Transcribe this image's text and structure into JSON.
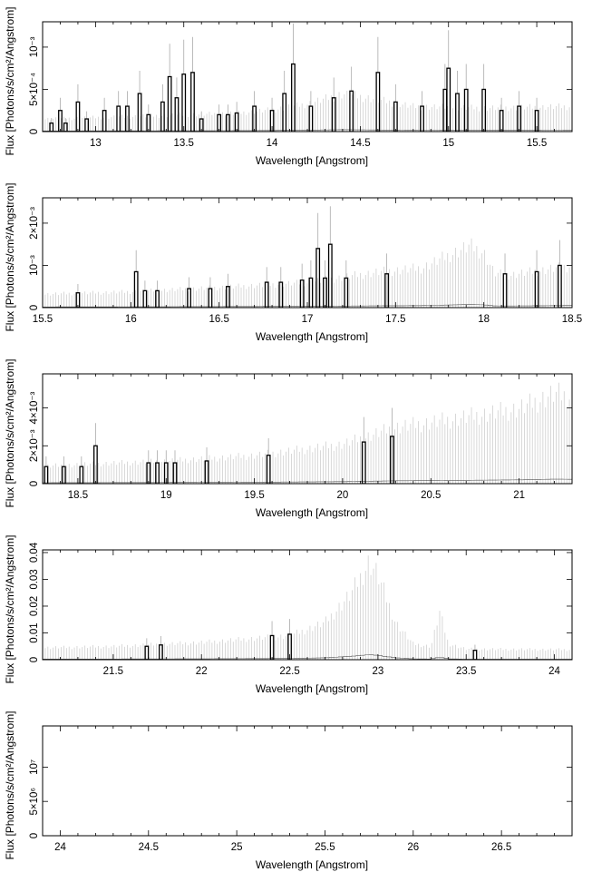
{
  "colors": {
    "frame": "#000000",
    "data": "#000000",
    "errorbar": "#c8c8c8",
    "background": "#ffffff"
  },
  "chart_data": [
    {
      "type": "line",
      "xlabel": "Wavelength [Angstrom]",
      "ylabel": "Flux [Photons/s/cm²/Angstrom]",
      "xlim": [
        12.7,
        15.7
      ],
      "ylim": [
        0,
        0.0013
      ],
      "xticks": [
        13,
        13.5,
        14,
        14.5,
        15,
        15.5
      ],
      "yticks": [
        {
          "v": 0,
          "label": "0"
        },
        {
          "v": 0.0005,
          "label": "5×10⁻⁴"
        },
        {
          "v": 0.001,
          "label": "10⁻³"
        }
      ],
      "continuum": [
        [
          12.7,
          0.00015
        ],
        [
          13.2,
          0.00018
        ],
        [
          13.8,
          0.00022
        ],
        [
          14.0,
          0.00026
        ],
        [
          14.2,
          0.00033
        ],
        [
          14.4,
          0.00045
        ],
        [
          14.55,
          0.0004
        ],
        [
          14.8,
          0.0003
        ],
        [
          15.2,
          0.00028
        ],
        [
          15.7,
          0.0003
        ]
      ],
      "bins": [
        [
          12.75,
          0.0001
        ],
        [
          12.8,
          0.00025
        ],
        [
          12.83,
          0.0001
        ],
        [
          12.9,
          0.00035
        ],
        [
          12.95,
          0.00015
        ],
        [
          13.05,
          0.00025
        ],
        [
          13.13,
          0.0003
        ],
        [
          13.18,
          0.0003
        ],
        [
          13.25,
          0.00045
        ],
        [
          13.3,
          0.0002
        ],
        [
          13.38,
          0.00035
        ],
        [
          13.42,
          0.00065
        ],
        [
          13.46,
          0.0004
        ],
        [
          13.5,
          0.00068
        ],
        [
          13.55,
          0.0007
        ],
        [
          13.6,
          0.00015
        ],
        [
          13.7,
          0.0002
        ],
        [
          13.75,
          0.0002
        ],
        [
          13.8,
          0.00022
        ],
        [
          13.9,
          0.0003
        ],
        [
          14.0,
          0.00025
        ],
        [
          14.07,
          0.00045
        ],
        [
          14.12,
          0.0008
        ],
        [
          14.22,
          0.0003
        ],
        [
          14.35,
          0.0004
        ],
        [
          14.45,
          0.00048
        ],
        [
          14.6,
          0.0007
        ],
        [
          14.7,
          0.00035
        ],
        [
          14.85,
          0.0003
        ],
        [
          14.98,
          0.0005
        ],
        [
          15.0,
          0.00075
        ],
        [
          15.05,
          0.00045
        ],
        [
          15.1,
          0.0005
        ],
        [
          15.2,
          0.0005
        ],
        [
          15.3,
          0.00025
        ],
        [
          15.4,
          0.0003
        ],
        [
          15.5,
          0.00025
        ]
      ]
    },
    {
      "type": "line",
      "xlabel": "Wavelength [Angstrom]",
      "ylabel": "Flux [Photons/s/cm²/Angstrom]",
      "xlim": [
        15.5,
        18.5
      ],
      "ylim": [
        0,
        0.0026
      ],
      "xticks": [
        15.5,
        16,
        16.5,
        17,
        17.5,
        18,
        18.5
      ],
      "yticks": [
        {
          "v": 0,
          "label": "0"
        },
        {
          "v": 0.001,
          "label": "10⁻³"
        },
        {
          "v": 0.002,
          "label": "2×10⁻³"
        }
      ],
      "continuum": [
        [
          15.5,
          0.00032
        ],
        [
          16.0,
          0.00038
        ],
        [
          16.5,
          0.00048
        ],
        [
          17.0,
          0.0006
        ],
        [
          17.4,
          0.00085
        ],
        [
          17.65,
          0.00095
        ],
        [
          17.8,
          0.00125
        ],
        [
          17.92,
          0.00148
        ],
        [
          18.0,
          0.00132
        ],
        [
          18.06,
          0.00082
        ],
        [
          18.15,
          0.00078
        ],
        [
          18.5,
          0.001
        ]
      ],
      "bins": [
        [
          15.7,
          0.00035
        ],
        [
          16.03,
          0.00085
        ],
        [
          16.08,
          0.0004
        ],
        [
          16.15,
          0.0004
        ],
        [
          16.33,
          0.00045
        ],
        [
          16.45,
          0.00045
        ],
        [
          16.55,
          0.0005
        ],
        [
          16.77,
          0.0006
        ],
        [
          16.85,
          0.0006
        ],
        [
          16.97,
          0.00065
        ],
        [
          17.02,
          0.0007
        ],
        [
          17.06,
          0.0014
        ],
        [
          17.1,
          0.0007
        ],
        [
          17.13,
          0.0015
        ],
        [
          17.22,
          0.0007
        ],
        [
          17.45,
          0.0008
        ],
        [
          18.12,
          0.0008
        ],
        [
          18.3,
          0.00085
        ],
        [
          18.43,
          0.001
        ]
      ]
    },
    {
      "type": "line",
      "xlabel": "Wavelength [Angstrom]",
      "ylabel": "Flux [Photons/s/cm²/Angstrom]",
      "xlim": [
        18.3,
        21.3
      ],
      "ylim": [
        0,
        0.0058
      ],
      "xticks": [
        18.5,
        19,
        19.5,
        20,
        20.5,
        21
      ],
      "yticks": [
        {
          "v": 0,
          "label": "0"
        },
        {
          "v": 0.002,
          "label": "2×10⁻³"
        },
        {
          "v": 0.004,
          "label": "4×10⁻³"
        }
      ],
      "continuum": [
        [
          18.3,
          0.00095
        ],
        [
          19.0,
          0.0012
        ],
        [
          19.5,
          0.0015
        ],
        [
          20.0,
          0.0021
        ],
        [
          20.3,
          0.003
        ],
        [
          20.6,
          0.0034
        ],
        [
          21.0,
          0.004
        ],
        [
          21.2,
          0.0048
        ],
        [
          21.3,
          0.0046
        ]
      ],
      "bins": [
        [
          18.32,
          0.0009
        ],
        [
          18.42,
          0.0009
        ],
        [
          18.52,
          0.0009
        ],
        [
          18.6,
          0.002
        ],
        [
          18.9,
          0.0011
        ],
        [
          18.95,
          0.0011
        ],
        [
          19.0,
          0.0011
        ],
        [
          19.05,
          0.0011
        ],
        [
          19.23,
          0.0012
        ],
        [
          19.58,
          0.0015
        ],
        [
          20.12,
          0.0022
        ],
        [
          20.28,
          0.0025
        ]
      ]
    },
    {
      "type": "line",
      "xlabel": "Wavelength [Angstrom]",
      "ylabel": "Flux [Photons/s/cm²/Angstrom]",
      "xlim": [
        21.1,
        24.1
      ],
      "ylim": [
        0,
        0.041
      ],
      "xticks": [
        21.5,
        22,
        22.5,
        23,
        23.5,
        24
      ],
      "yticks": [
        {
          "v": 0,
          "label": "0"
        },
        {
          "v": 0.01,
          "label": "0.01"
        },
        {
          "v": 0.02,
          "label": "0.02"
        },
        {
          "v": 0.03,
          "label": "0.03"
        },
        {
          "v": 0.04,
          "label": "0.04"
        }
      ],
      "continuum": [
        [
          21.1,
          0.0045
        ],
        [
          21.5,
          0.005
        ],
        [
          22.0,
          0.0065
        ],
        [
          22.5,
          0.009
        ],
        [
          22.7,
          0.014
        ],
        [
          22.85,
          0.025
        ],
        [
          22.95,
          0.037
        ],
        [
          23.0,
          0.032
        ],
        [
          23.1,
          0.014
        ],
        [
          23.2,
          0.006
        ],
        [
          23.3,
          0.005
        ],
        [
          23.35,
          0.018
        ],
        [
          23.4,
          0.006
        ],
        [
          23.5,
          0.004
        ],
        [
          24.1,
          0.0038
        ]
      ],
      "bins": [
        [
          21.69,
          0.005
        ],
        [
          21.77,
          0.0055
        ],
        [
          22.4,
          0.009
        ],
        [
          22.5,
          0.0095
        ],
        [
          23.55,
          0.0035
        ]
      ]
    },
    {
      "type": "line",
      "xlabel": "Wavelength [Angstrom]",
      "ylabel": "Flux [Photons/s/cm²/Angstrom]",
      "xlim": [
        23.9,
        26.9
      ],
      "ylim": [
        0,
        16000000
      ],
      "xticks": [
        24,
        24.5,
        25,
        25.5,
        26,
        26.5
      ],
      "yticks": [
        {
          "v": 0,
          "label": "0"
        },
        {
          "v": 5000000,
          "label": "5×10⁶"
        },
        {
          "v": 10000000,
          "label": "10⁷"
        }
      ],
      "continuum": [],
      "bins": []
    }
  ]
}
